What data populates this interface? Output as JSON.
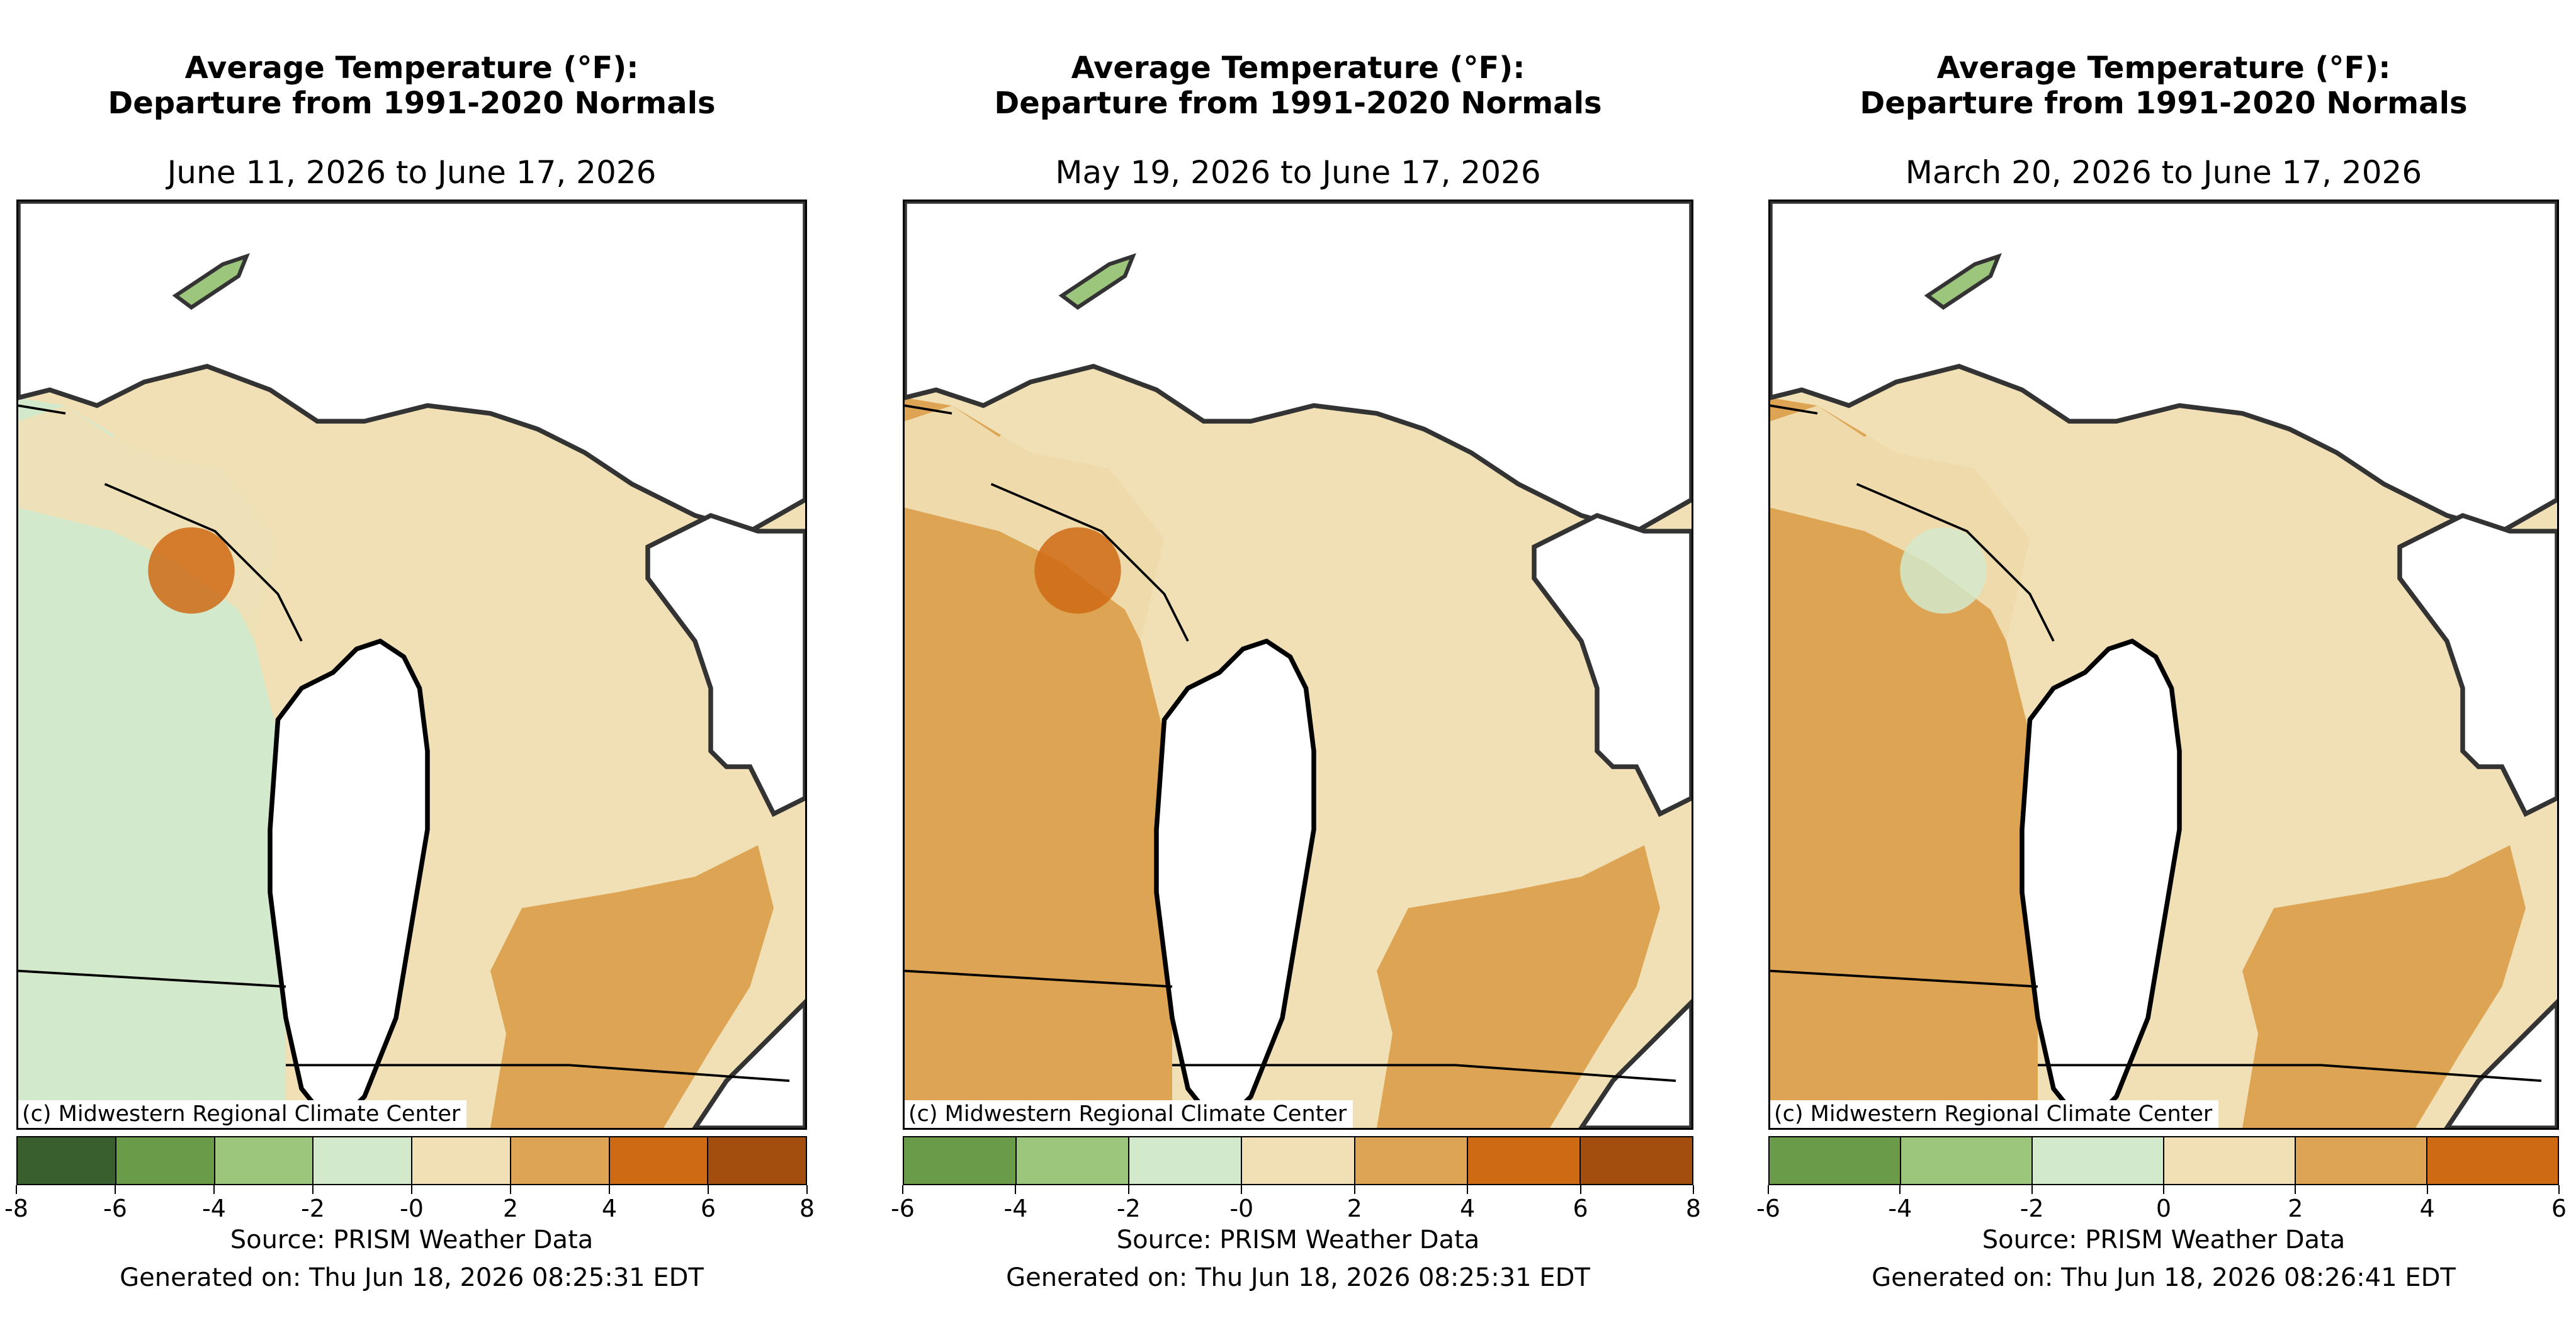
{
  "panels": [
    {
      "title_line1": "Average Temperature (°F):",
      "title_line2": "Departure from 1991-2020 Normals",
      "date_range": "June 11, 2026 to June 17, 2026",
      "credit": "(c) Midwestern Regional Climate Center",
      "colorbar": {
        "colors": [
          "#3a5f2e",
          "#6a9b48",
          "#9cc67c",
          "#d2e9cc",
          "#f1e0b5",
          "#dda553",
          "#cf6a14",
          "#a34d0e"
        ],
        "ticks": [
          "-8",
          "-6",
          "-4",
          "-2",
          "-0",
          "2",
          "4",
          "6",
          "8"
        ]
      },
      "dominant_fills": {
        "west": "#d2e9cc",
        "center": "#f1e0b5",
        "southeast": "#dda553",
        "accent": "#cf6a14"
      },
      "source": "Source: PRISM Weather Data",
      "generated": "Generated on: Thu Jun 18, 2026 08:25:31 EDT"
    },
    {
      "title_line1": "Average Temperature (°F):",
      "title_line2": "Departure from 1991-2020 Normals",
      "date_range": "May 19, 2026 to June 17, 2026",
      "credit": "(c) Midwestern Regional Climate Center",
      "colorbar": {
        "colors": [
          "#6a9b48",
          "#9cc67c",
          "#d2e9cc",
          "#f1e0b5",
          "#dda553",
          "#cf6a14",
          "#a34d0e"
        ],
        "ticks": [
          "-6",
          "-4",
          "-2",
          "-0",
          "2",
          "4",
          "6",
          "8"
        ]
      },
      "dominant_fills": {
        "west": "#dda553",
        "center": "#f1e0b5",
        "southeast": "#dda553",
        "accent": "#cf6a14"
      },
      "source": "Source: PRISM Weather Data",
      "generated": "Generated on: Thu Jun 18, 2026 08:25:31 EDT"
    },
    {
      "title_line1": "Average Temperature (°F):",
      "title_line2": "Departure from 1991-2020 Normals",
      "date_range": "March 20, 2026 to June 17, 2026",
      "credit": "(c) Midwestern Regional Climate Center",
      "colorbar": {
        "colors": [
          "#6a9b48",
          "#9cc67c",
          "#d2e9cc",
          "#f1e0b5",
          "#dda553",
          "#cf6a14"
        ],
        "ticks": [
          "-6",
          "-4",
          "-2",
          "0",
          "2",
          "4",
          "6"
        ]
      },
      "dominant_fills": {
        "west": "#dda553",
        "center": "#f1e0b5",
        "southeast": "#dda553",
        "accent": "#d2e9cc"
      },
      "source": "Source: PRISM Weather Data",
      "generated": "Generated on: Thu Jun 18, 2026 08:26:41 EDT"
    }
  ]
}
